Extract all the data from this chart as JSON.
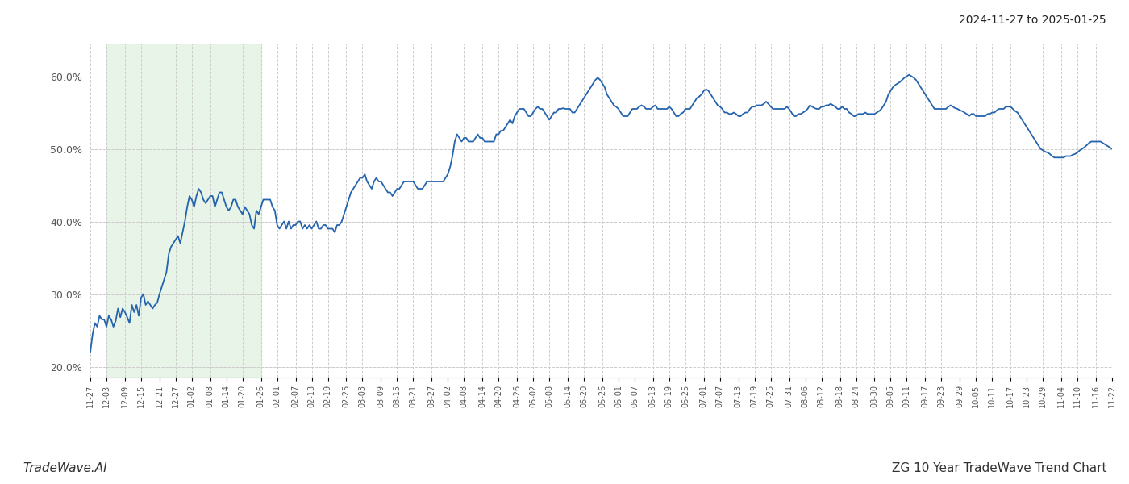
{
  "title_right": "2024-11-27 to 2025-01-25",
  "title_bottom_left": "TradeWave.AI",
  "title_bottom_right": "ZG 10 Year TradeWave Trend Chart",
  "background_color": "#ffffff",
  "line_color": "#2463ae",
  "line_width": 1.3,
  "shade_color": "#d4ebd4",
  "shade_alpha": 0.55,
  "ylim": [
    0.185,
    0.645
  ],
  "yticks": [
    0.2,
    0.3,
    0.4,
    0.5,
    0.6
  ],
  "grid_color": "#cccccc",
  "grid_style": "--",
  "x_labels": [
    "11-27",
    "12-03",
    "12-09",
    "12-15",
    "12-21",
    "12-27",
    "01-02",
    "01-08",
    "01-14",
    "01-20",
    "01-26",
    "02-01",
    "02-07",
    "02-13",
    "02-19",
    "02-25",
    "03-03",
    "03-09",
    "03-15",
    "03-21",
    "03-27",
    "04-02",
    "04-08",
    "04-14",
    "04-20",
    "04-26",
    "05-02",
    "05-08",
    "05-14",
    "05-20",
    "05-26",
    "06-01",
    "06-07",
    "06-13",
    "06-19",
    "06-25",
    "07-01",
    "07-07",
    "07-13",
    "07-19",
    "07-25",
    "07-31",
    "08-06",
    "08-12",
    "08-18",
    "08-24",
    "08-30",
    "09-05",
    "09-11",
    "09-17",
    "09-23",
    "09-29",
    "10-05",
    "10-11",
    "10-17",
    "10-23",
    "10-29",
    "11-04",
    "11-10",
    "11-16",
    "11-22"
  ],
  "shade_start_label": "12-03",
  "shade_end_label": "01-26",
  "y_values": [
    0.22,
    0.245,
    0.26,
    0.255,
    0.27,
    0.265,
    0.265,
    0.255,
    0.27,
    0.265,
    0.255,
    0.263,
    0.28,
    0.268,
    0.28,
    0.275,
    0.268,
    0.26,
    0.285,
    0.275,
    0.285,
    0.27,
    0.295,
    0.3,
    0.285,
    0.29,
    0.285,
    0.28,
    0.285,
    0.288,
    0.3,
    0.31,
    0.32,
    0.33,
    0.355,
    0.365,
    0.37,
    0.375,
    0.38,
    0.37,
    0.385,
    0.4,
    0.42,
    0.435,
    0.43,
    0.42,
    0.435,
    0.445,
    0.44,
    0.43,
    0.425,
    0.43,
    0.435,
    0.435,
    0.42,
    0.43,
    0.44,
    0.44,
    0.43,
    0.42,
    0.415,
    0.42,
    0.43,
    0.43,
    0.42,
    0.415,
    0.41,
    0.42,
    0.415,
    0.41,
    0.395,
    0.39,
    0.415,
    0.41,
    0.42,
    0.43,
    0.43,
    0.43,
    0.43,
    0.42,
    0.415,
    0.395,
    0.39,
    0.395,
    0.4,
    0.39,
    0.4,
    0.39,
    0.395,
    0.395,
    0.4,
    0.4,
    0.39,
    0.395,
    0.39,
    0.395,
    0.39,
    0.395,
    0.4,
    0.39,
    0.39,
    0.395,
    0.395,
    0.39,
    0.39,
    0.39,
    0.385,
    0.395,
    0.395,
    0.4,
    0.41,
    0.42,
    0.43,
    0.44,
    0.445,
    0.45,
    0.455,
    0.46,
    0.46,
    0.465,
    0.455,
    0.45,
    0.445,
    0.455,
    0.46,
    0.455,
    0.455,
    0.45,
    0.445,
    0.44,
    0.44,
    0.435,
    0.44,
    0.445,
    0.445,
    0.45,
    0.455,
    0.455,
    0.455,
    0.455,
    0.455,
    0.45,
    0.445,
    0.445,
    0.445,
    0.45,
    0.455,
    0.455,
    0.455,
    0.455,
    0.455,
    0.455,
    0.455,
    0.455,
    0.46,
    0.465,
    0.475,
    0.49,
    0.51,
    0.52,
    0.515,
    0.51,
    0.515,
    0.515,
    0.51,
    0.51,
    0.51,
    0.515,
    0.52,
    0.515,
    0.515,
    0.51,
    0.51,
    0.51,
    0.51,
    0.51,
    0.52,
    0.52,
    0.525,
    0.525,
    0.53,
    0.535,
    0.54,
    0.535,
    0.545,
    0.55,
    0.555,
    0.555,
    0.555,
    0.55,
    0.545,
    0.545,
    0.55,
    0.555,
    0.558,
    0.555,
    0.555,
    0.55,
    0.545,
    0.54,
    0.545,
    0.55,
    0.55,
    0.555,
    0.555,
    0.556,
    0.555,
    0.555,
    0.555,
    0.55,
    0.55,
    0.555,
    0.56,
    0.565,
    0.57,
    0.575,
    0.58,
    0.585,
    0.59,
    0.595,
    0.598,
    0.595,
    0.59,
    0.585,
    0.575,
    0.57,
    0.565,
    0.56,
    0.558,
    0.555,
    0.55,
    0.545,
    0.545,
    0.545,
    0.55,
    0.555,
    0.555,
    0.555,
    0.558,
    0.56,
    0.558,
    0.555,
    0.555,
    0.555,
    0.558,
    0.56,
    0.555,
    0.555,
    0.555,
    0.555,
    0.555,
    0.558,
    0.555,
    0.55,
    0.545,
    0.545,
    0.548,
    0.55,
    0.555,
    0.555,
    0.555,
    0.56,
    0.565,
    0.57,
    0.572,
    0.575,
    0.58,
    0.582,
    0.58,
    0.575,
    0.57,
    0.565,
    0.56,
    0.558,
    0.555,
    0.55,
    0.55,
    0.548,
    0.548,
    0.55,
    0.548,
    0.545,
    0.545,
    0.548,
    0.55,
    0.55,
    0.555,
    0.558,
    0.558,
    0.56,
    0.56,
    0.56,
    0.562,
    0.565,
    0.562,
    0.558,
    0.555,
    0.555,
    0.555,
    0.555,
    0.555,
    0.555,
    0.558,
    0.555,
    0.55,
    0.545,
    0.545,
    0.548,
    0.548,
    0.55,
    0.552,
    0.555,
    0.56,
    0.558,
    0.556,
    0.555,
    0.555,
    0.558,
    0.558,
    0.56,
    0.56,
    0.562,
    0.56,
    0.558,
    0.555,
    0.555,
    0.558,
    0.555,
    0.555,
    0.55,
    0.548,
    0.545,
    0.545,
    0.548,
    0.548,
    0.548,
    0.55,
    0.548,
    0.548,
    0.548,
    0.548,
    0.55,
    0.552,
    0.555,
    0.56,
    0.565,
    0.575,
    0.58,
    0.585,
    0.588,
    0.59,
    0.592,
    0.595,
    0.598,
    0.6,
    0.602,
    0.6,
    0.598,
    0.595,
    0.59,
    0.585,
    0.58,
    0.575,
    0.57,
    0.565,
    0.56,
    0.555,
    0.555,
    0.555,
    0.555,
    0.555,
    0.555,
    0.558,
    0.56,
    0.558,
    0.556,
    0.555,
    0.553,
    0.552,
    0.55,
    0.548,
    0.545,
    0.548,
    0.548,
    0.545,
    0.545,
    0.545,
    0.545,
    0.545,
    0.548,
    0.548,
    0.55,
    0.55,
    0.553,
    0.555,
    0.555,
    0.555,
    0.558,
    0.558,
    0.558,
    0.555,
    0.552,
    0.55,
    0.545,
    0.54,
    0.535,
    0.53,
    0.525,
    0.52,
    0.515,
    0.51,
    0.505,
    0.5,
    0.498,
    0.496,
    0.495,
    0.493,
    0.49,
    0.488,
    0.488,
    0.488,
    0.488,
    0.488,
    0.49,
    0.49,
    0.49,
    0.492,
    0.493,
    0.495,
    0.498,
    0.5,
    0.502,
    0.505,
    0.508,
    0.51,
    0.51,
    0.51,
    0.51,
    0.51,
    0.508,
    0.506,
    0.504,
    0.502,
    0.5
  ]
}
